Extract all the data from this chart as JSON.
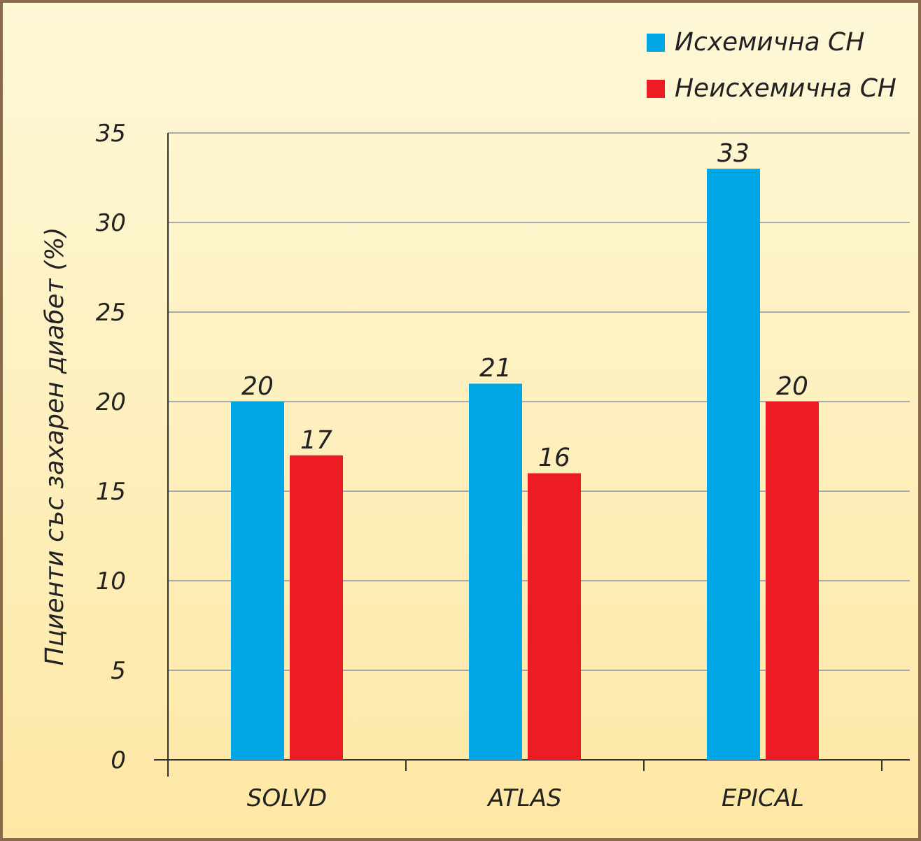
{
  "chart_data": {
    "type": "bar",
    "ylabel": "Пциенти със захарен диабет (%)",
    "categories": [
      "SOLVD",
      "ATLAS",
      "EPICAL"
    ],
    "series": [
      {
        "name": "Исхемична СН",
        "color": "#00a6e6",
        "values": [
          20,
          21,
          33
        ]
      },
      {
        "name": "Неисхемична СН",
        "color": "#ed1c24",
        "values": [
          17,
          16,
          20
        ]
      }
    ],
    "ylim": [
      0,
      35
    ],
    "yticks": [
      0,
      5,
      10,
      15,
      20,
      25,
      30,
      35
    ],
    "grid": "y",
    "legend": "top right",
    "data_labels": true
  }
}
